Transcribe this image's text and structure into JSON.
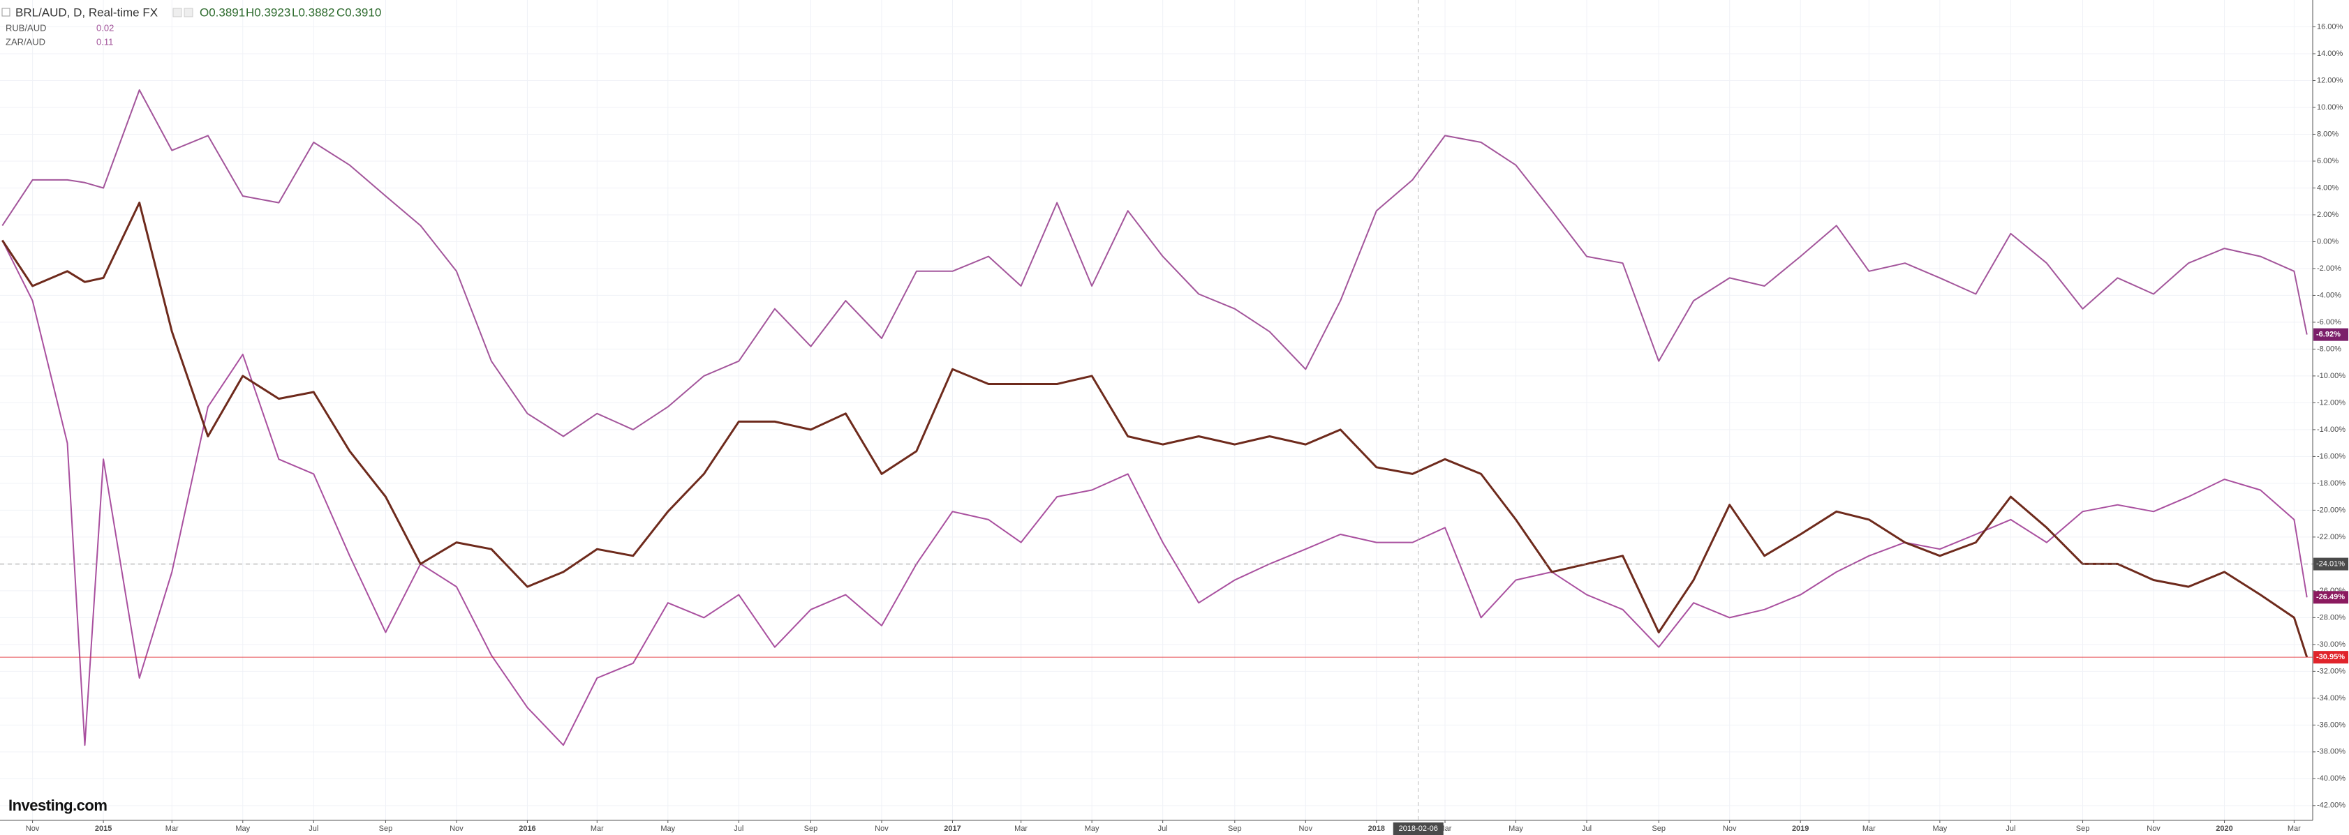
{
  "chart_data": {
    "type": "line",
    "header": {
      "symbol": "BRL/AUD, D, Real-time FX",
      "open": "O0.3891",
      "high": "H0.3923",
      "low": "L0.3882",
      "close": "C0.3910"
    },
    "x": [
      "2014-10-06",
      "2014-11-01",
      "2014-12-01",
      "2014-12-16",
      "2015-01-01",
      "2015-02-01",
      "2015-03-01",
      "2015-04-01",
      "2015-05-01",
      "2015-06-01",
      "2015-07-01",
      "2015-08-01",
      "2015-09-01",
      "2015-10-01",
      "2015-11-01",
      "2015-12-01",
      "2016-01-01",
      "2016-02-01",
      "2016-03-01",
      "2016-04-01",
      "2016-05-01",
      "2016-06-01",
      "2016-07-01",
      "2016-08-01",
      "2016-09-01",
      "2016-10-01",
      "2016-11-01",
      "2016-12-01",
      "2017-01-01",
      "2017-02-01",
      "2017-03-01",
      "2017-04-01",
      "2017-05-01",
      "2017-06-01",
      "2017-07-01",
      "2017-08-01",
      "2017-09-01",
      "2017-10-01",
      "2017-11-01",
      "2017-12-01",
      "2018-01-01",
      "2018-02-01",
      "2018-03-01",
      "2018-04-01",
      "2018-05-01",
      "2018-06-01",
      "2018-07-01",
      "2018-08-01",
      "2018-09-01",
      "2018-10-01",
      "2018-11-01",
      "2018-12-01",
      "2019-01-01",
      "2019-02-01",
      "2019-03-01",
      "2019-04-01",
      "2019-05-01",
      "2019-06-01",
      "2019-07-01",
      "2019-08-01",
      "2019-09-01",
      "2019-10-01",
      "2019-11-01",
      "2019-12-01",
      "2020-01-01",
      "2020-02-01",
      "2020-03-01",
      "2020-03-12"
    ],
    "series": [
      {
        "name": "ZAR/AUD",
        "legend_value": "0.11",
        "color": "#a3559b",
        "label_color": "#7b1f6a",
        "end_label": "-6.92%",
        "values": [
          1.2,
          4.6,
          4.6,
          4.4,
          4.0,
          11.3,
          6.8,
          7.9,
          3.4,
          2.9,
          7.4,
          5.7,
          3.4,
          1.2,
          -2.2,
          -8.9,
          -12.8,
          -14.5,
          -12.8,
          -14,
          -12.3,
          -10,
          -8.9,
          -5,
          -7.8,
          -4.4,
          -7.2,
          -2.2,
          -2.2,
          -1.1,
          -3.3,
          2.9,
          -3.3,
          2.3,
          -1.1,
          -3.9,
          -5,
          -6.7,
          -9.5,
          -4.4,
          2.3,
          4.6,
          7.9,
          7.4,
          5.7,
          2.3,
          -1.1,
          -1.6,
          -8.9,
          -4.4,
          -2.7,
          -3.3,
          -1.1,
          1.2,
          -2.2,
          -1.6,
          -2.7,
          -3.9,
          0.6,
          -1.6,
          -5,
          -2.7,
          -3.9,
          -1.6,
          -0.5,
          -1.1,
          -2.2,
          -6.92
        ]
      },
      {
        "name": "RUB/AUD",
        "legend_value": "0.02",
        "color": "#a9509f",
        "label_color": "#8b1a5f",
        "end_label": "-26.49%",
        "values": [
          0.1,
          -4.4,
          -15,
          -37.5,
          -16.2,
          -32.5,
          -24.6,
          -12.3,
          -8.4,
          -16.2,
          -17.3,
          -23.4,
          -29.1,
          -24,
          -25.7,
          -30.8,
          -34.7,
          -37.5,
          -32.5,
          -31.4,
          -26.9,
          -28,
          -26.3,
          -30.2,
          -27.4,
          -26.3,
          -28.6,
          -24,
          -20.1,
          -20.7,
          -22.4,
          -19,
          -18.5,
          -17.3,
          -22.4,
          -26.9,
          -25.2,
          -24,
          -22.9,
          -21.8,
          -22.4,
          -22.4,
          -21.3,
          -28,
          -25.2,
          -24.6,
          -26.3,
          -27.4,
          -30.2,
          -26.9,
          -28,
          -27.4,
          -26.3,
          -24.6,
          -23.4,
          -22.4,
          -22.9,
          -21.8,
          -20.7,
          -22.4,
          -20.1,
          -19.6,
          -20.1,
          -19,
          -17.7,
          -18.5,
          -20.7,
          -26.49
        ]
      },
      {
        "name": "BRL/AUD",
        "color": "#6e2a1c",
        "label_color": "#e0242b",
        "end_label": "-30.95%",
        "values": [
          0.1,
          -3.3,
          -2.2,
          -3,
          -2.7,
          2.9,
          -6.7,
          -14.5,
          -10,
          -11.7,
          -11.2,
          -15.6,
          -19,
          -24,
          -22.4,
          -22.9,
          -25.7,
          -24.6,
          -22.9,
          -23.4,
          -20.1,
          -17.3,
          -13.4,
          -13.4,
          -14,
          -12.8,
          -17.3,
          -15.6,
          -9.5,
          -10.6,
          -10.6,
          -10.6,
          -10,
          -14.5,
          -15.1,
          -14.5,
          -15.1,
          -14.5,
          -15.1,
          -14,
          -16.8,
          -17.3,
          -16.2,
          -17.3,
          -20.7,
          -24.6,
          -24,
          -23.4,
          -29.1,
          -25.2,
          -19.6,
          -23.4,
          -21.8,
          -20.1,
          -20.7,
          -22.4,
          -23.4,
          -22.4,
          -19,
          -21.3,
          -24,
          -24,
          -25.2,
          -25.7,
          -24.6,
          -26.3,
          -28,
          -30.95
        ]
      }
    ],
    "price_line": {
      "value": -24.01,
      "label": "-24.01%"
    },
    "crosshair": {
      "x": "2018-02-06",
      "label": "2018-02-06"
    },
    "xlim": [
      "2014-10-04",
      "2020-03-17"
    ],
    "xticks": [
      {
        "value": "2014-11-01",
        "label": "Nov"
      },
      {
        "value": "2015-01-01",
        "label": "2015"
      },
      {
        "value": "2015-03-01",
        "label": "Mar"
      },
      {
        "value": "2015-05-01",
        "label": "May"
      },
      {
        "value": "2015-07-01",
        "label": "Jul"
      },
      {
        "value": "2015-09-01",
        "label": "Sep"
      },
      {
        "value": "2015-11-01",
        "label": "Nov"
      },
      {
        "value": "2016-01-01",
        "label": "2016"
      },
      {
        "value": "2016-03-01",
        "label": "Mar"
      },
      {
        "value": "2016-05-01",
        "label": "May"
      },
      {
        "value": "2016-07-01",
        "label": "Jul"
      },
      {
        "value": "2016-09-01",
        "label": "Sep"
      },
      {
        "value": "2016-11-01",
        "label": "Nov"
      },
      {
        "value": "2017-01-01",
        "label": "2017"
      },
      {
        "value": "2017-03-01",
        "label": "Mar"
      },
      {
        "value": "2017-05-01",
        "label": "May"
      },
      {
        "value": "2017-07-01",
        "label": "Jul"
      },
      {
        "value": "2017-09-01",
        "label": "Sep"
      },
      {
        "value": "2017-11-01",
        "label": "Nov"
      },
      {
        "value": "2018-01-01",
        "label": "2018"
      },
      {
        "value": "2018-03-01",
        "label": "Mar"
      },
      {
        "value": "2018-05-01",
        "label": "May"
      },
      {
        "value": "2018-07-01",
        "label": "Jul"
      },
      {
        "value": "2018-09-01",
        "label": "Sep"
      },
      {
        "value": "2018-11-01",
        "label": "Nov"
      },
      {
        "value": "2019-01-01",
        "label": "2019"
      },
      {
        "value": "2019-03-01",
        "label": "Mar"
      },
      {
        "value": "2019-05-01",
        "label": "May"
      },
      {
        "value": "2019-07-01",
        "label": "Jul"
      },
      {
        "value": "2019-09-01",
        "label": "Sep"
      },
      {
        "value": "2019-11-01",
        "label": "Nov"
      },
      {
        "value": "2020-01-01",
        "label": "2020"
      },
      {
        "value": "2020-03-01",
        "label": "Mar"
      }
    ],
    "ylim": [
      -43.1,
      18.0
    ],
    "yticks": [
      {
        "value": 16,
        "label": "16.00%"
      },
      {
        "value": 14,
        "label": "14.00%"
      },
      {
        "value": 12,
        "label": "12.00%"
      },
      {
        "value": 10,
        "label": "10.00%"
      },
      {
        "value": 8,
        "label": "8.00%"
      },
      {
        "value": 6,
        "label": "6.00%"
      },
      {
        "value": 4,
        "label": "4.00%"
      },
      {
        "value": 2,
        "label": "2.00%"
      },
      {
        "value": 0,
        "label": "0.00%"
      },
      {
        "value": -2,
        "label": "-2.00%"
      },
      {
        "value": -4,
        "label": "-4.00%"
      },
      {
        "value": -6,
        "label": "-6.00%"
      },
      {
        "value": -8,
        "label": "-8.00%"
      },
      {
        "value": -10,
        "label": "-10.00%"
      },
      {
        "value": -12,
        "label": "-12.00%"
      },
      {
        "value": -14,
        "label": "-14.00%"
      },
      {
        "value": -16,
        "label": "-16.00%"
      },
      {
        "value": -18,
        "label": "-18.00%"
      },
      {
        "value": -20,
        "label": "-20.00%"
      },
      {
        "value": -22,
        "label": "-22.00%"
      },
      {
        "value": -24,
        "label": "-24.00%"
      },
      {
        "value": -26,
        "label": "-26.00%"
      },
      {
        "value": -28,
        "label": "-28.00%"
      },
      {
        "value": -30,
        "label": "-30.00%"
      },
      {
        "value": -32,
        "label": "-32.00%"
      },
      {
        "value": -34,
        "label": "-34.00%"
      },
      {
        "value": -36,
        "label": "-36.00%"
      },
      {
        "value": -38,
        "label": "-38.00%"
      },
      {
        "value": -40,
        "label": "-40.00%"
      },
      {
        "value": -42,
        "label": "-42.00%"
      }
    ],
    "grid": true,
    "logo": "Investing.com"
  }
}
